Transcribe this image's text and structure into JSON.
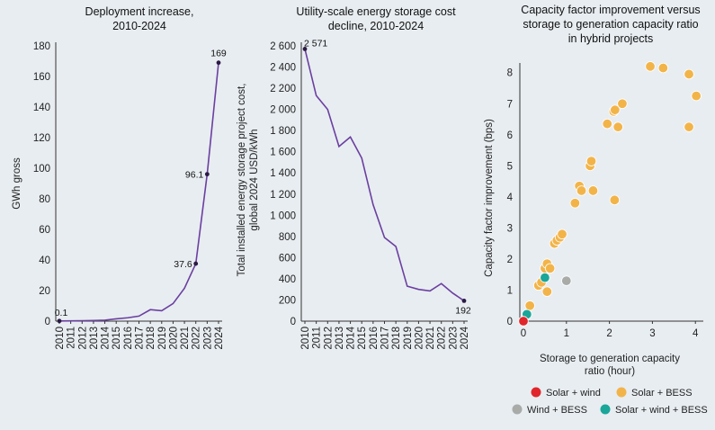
{
  "chart_data": [
    {
      "type": "line",
      "title": [
        "Deployment increase,",
        "2010-2024"
      ],
      "xlabel": "",
      "ylabel": "GWh gross",
      "categories": [
        "2010",
        "2011",
        "2012",
        "2013",
        "2014",
        "2015",
        "2016",
        "2017",
        "2018",
        "2019",
        "2020",
        "2021",
        "2022",
        "2023",
        "2024"
      ],
      "series": [
        {
          "values": [
            0.1,
            0.2,
            0.3,
            0.4,
            0.6,
            1.5,
            2.2,
            3.3,
            7.5,
            6.8,
            11.5,
            21.5,
            37.6,
            96.1,
            169
          ]
        }
      ],
      "ylim": [
        0,
        180
      ],
      "yticks": [
        0,
        20,
        40,
        60,
        80,
        100,
        120,
        140,
        160,
        180
      ],
      "point_labels": [
        {
          "index": 0,
          "text": "0.1"
        },
        {
          "index": 12,
          "text": "37.6"
        },
        {
          "index": 13,
          "text": "96.1"
        },
        {
          "index": 14,
          "text": "169"
        }
      ],
      "color": "#6b3fa0"
    },
    {
      "type": "line",
      "title": [
        "Utility-scale energy storage cost",
        "decline, 2010-2024"
      ],
      "xlabel": "",
      "ylabel": [
        "Total installed energy storage project cost,",
        "global 2024 USD/kWh"
      ],
      "categories": [
        "2010",
        "2011",
        "2012",
        "2013",
        "2014",
        "2015",
        "2016",
        "2017",
        "2018",
        "2019",
        "2020",
        "2021",
        "2022",
        "2023",
        "2024"
      ],
      "series": [
        {
          "values": [
            2571,
            2130,
            2000,
            1650,
            1740,
            1540,
            1100,
            790,
            705,
            330,
            300,
            285,
            355,
            265,
            192
          ]
        }
      ],
      "ylim": [
        0,
        2600
      ],
      "yticks": [
        0,
        200,
        400,
        600,
        800,
        1000,
        1200,
        1400,
        1600,
        1800,
        2000,
        2200,
        2400,
        2600
      ],
      "ytick_labels": [
        "0",
        "200",
        "400",
        "600",
        "800",
        "1 000",
        "1 200",
        "1 400",
        "1 600",
        "1 800",
        "2 000",
        "2 200",
        "2 400",
        "2 600"
      ],
      "point_labels": [
        {
          "index": 0,
          "text": "2 571"
        },
        {
          "index": 14,
          "text": "192"
        }
      ],
      "color": "#6b3fa0"
    },
    {
      "type": "scatter",
      "title": [
        "Capacity factor improvement versus",
        "storage to generation capacity ratio",
        "in hybrid projects"
      ],
      "xlabel": [
        "Storage to generation capacity",
        "ratio (hour)"
      ],
      "ylabel": "Capacity factor improvement (bps)",
      "xlim": [
        0,
        4.1
      ],
      "ylim": [
        0,
        8.6
      ],
      "xticks": [
        0,
        1,
        2,
        3,
        4
      ],
      "yticks": [
        0,
        1,
        2,
        3,
        4,
        5,
        6,
        7,
        8
      ],
      "series": [
        {
          "name": "Solar + wind",
          "color": "#e0262b",
          "points": [
            [
              0.0,
              0.0
            ]
          ]
        },
        {
          "name": "Solar + BESS",
          "color": "#f2b449",
          "points": [
            [
              0.15,
              0.5
            ],
            [
              0.35,
              1.15
            ],
            [
              0.42,
              1.25
            ],
            [
              0.5,
              1.7
            ],
            [
              0.55,
              1.85
            ],
            [
              0.55,
              0.95
            ],
            [
              0.62,
              1.7
            ],
            [
              0.72,
              2.5
            ],
            [
              0.78,
              2.6
            ],
            [
              0.85,
              2.7
            ],
            [
              0.9,
              2.8
            ],
            [
              1.2,
              3.8
            ],
            [
              1.3,
              4.35
            ],
            [
              1.35,
              4.2
            ],
            [
              1.55,
              5.0
            ],
            [
              1.58,
              5.15
            ],
            [
              1.62,
              4.2
            ],
            [
              1.95,
              6.35
            ],
            [
              2.1,
              6.75
            ],
            [
              2.13,
              6.8
            ],
            [
              2.2,
              6.25
            ],
            [
              2.3,
              7.0
            ],
            [
              2.12,
              3.9
            ],
            [
              2.95,
              8.2
            ],
            [
              3.25,
              8.15
            ],
            [
              3.85,
              7.95
            ],
            [
              3.85,
              6.25
            ],
            [
              4.02,
              7.25
            ]
          ]
        },
        {
          "name": "Wind + BESS",
          "color": "#a9aba8",
          "points": [
            [
              1.0,
              1.3
            ]
          ]
        },
        {
          "name": "Solar + wind + BESS",
          "color": "#1aa699",
          "points": [
            [
              0.08,
              0.22
            ],
            [
              0.5,
              1.4
            ]
          ]
        }
      ],
      "legend": "bottom"
    }
  ]
}
